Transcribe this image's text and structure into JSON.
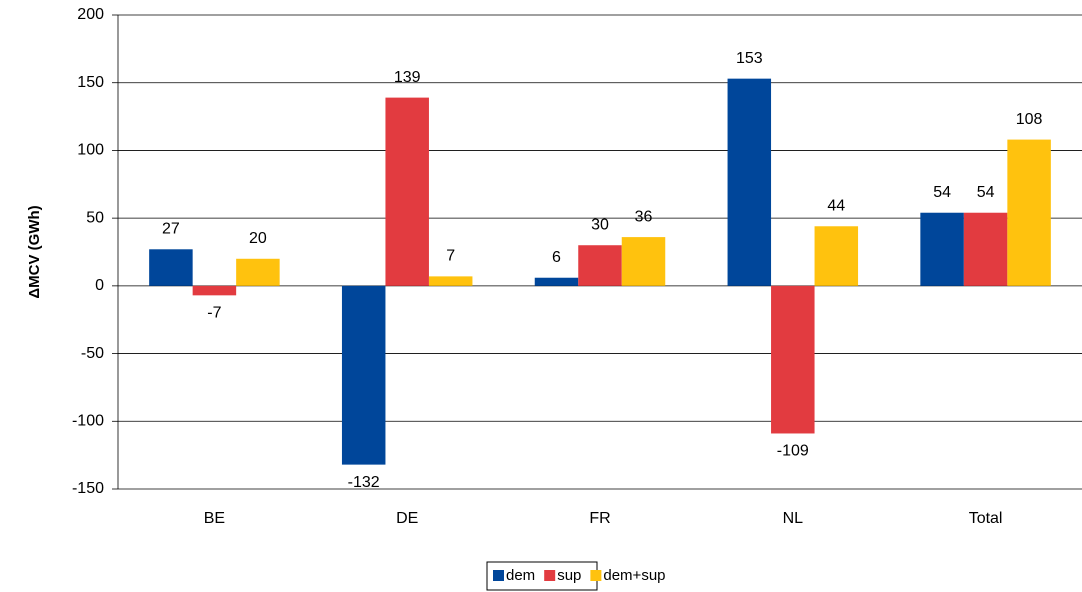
{
  "chart_data": {
    "type": "bar",
    "y_label": "ΔMCV (GWh)",
    "categories": [
      "BE",
      "DE",
      "FR",
      "NL",
      "Total"
    ],
    "series": [
      {
        "name": "dem",
        "color": "#00469a",
        "values": [
          27,
          -132,
          6,
          153,
          54
        ]
      },
      {
        "name": "sup",
        "color": "#e23b40",
        "values": [
          -7,
          139,
          30,
          -109,
          54
        ]
      },
      {
        "name": "dem+sup",
        "color": "#ffc20e",
        "values": [
          20,
          7,
          36,
          44,
          108
        ]
      }
    ],
    "ylim": [
      -150,
      200
    ],
    "yticks": [
      -150,
      -100,
      -50,
      0,
      50,
      100,
      150,
      200
    ],
    "grid": true,
    "legend": "bottom"
  }
}
